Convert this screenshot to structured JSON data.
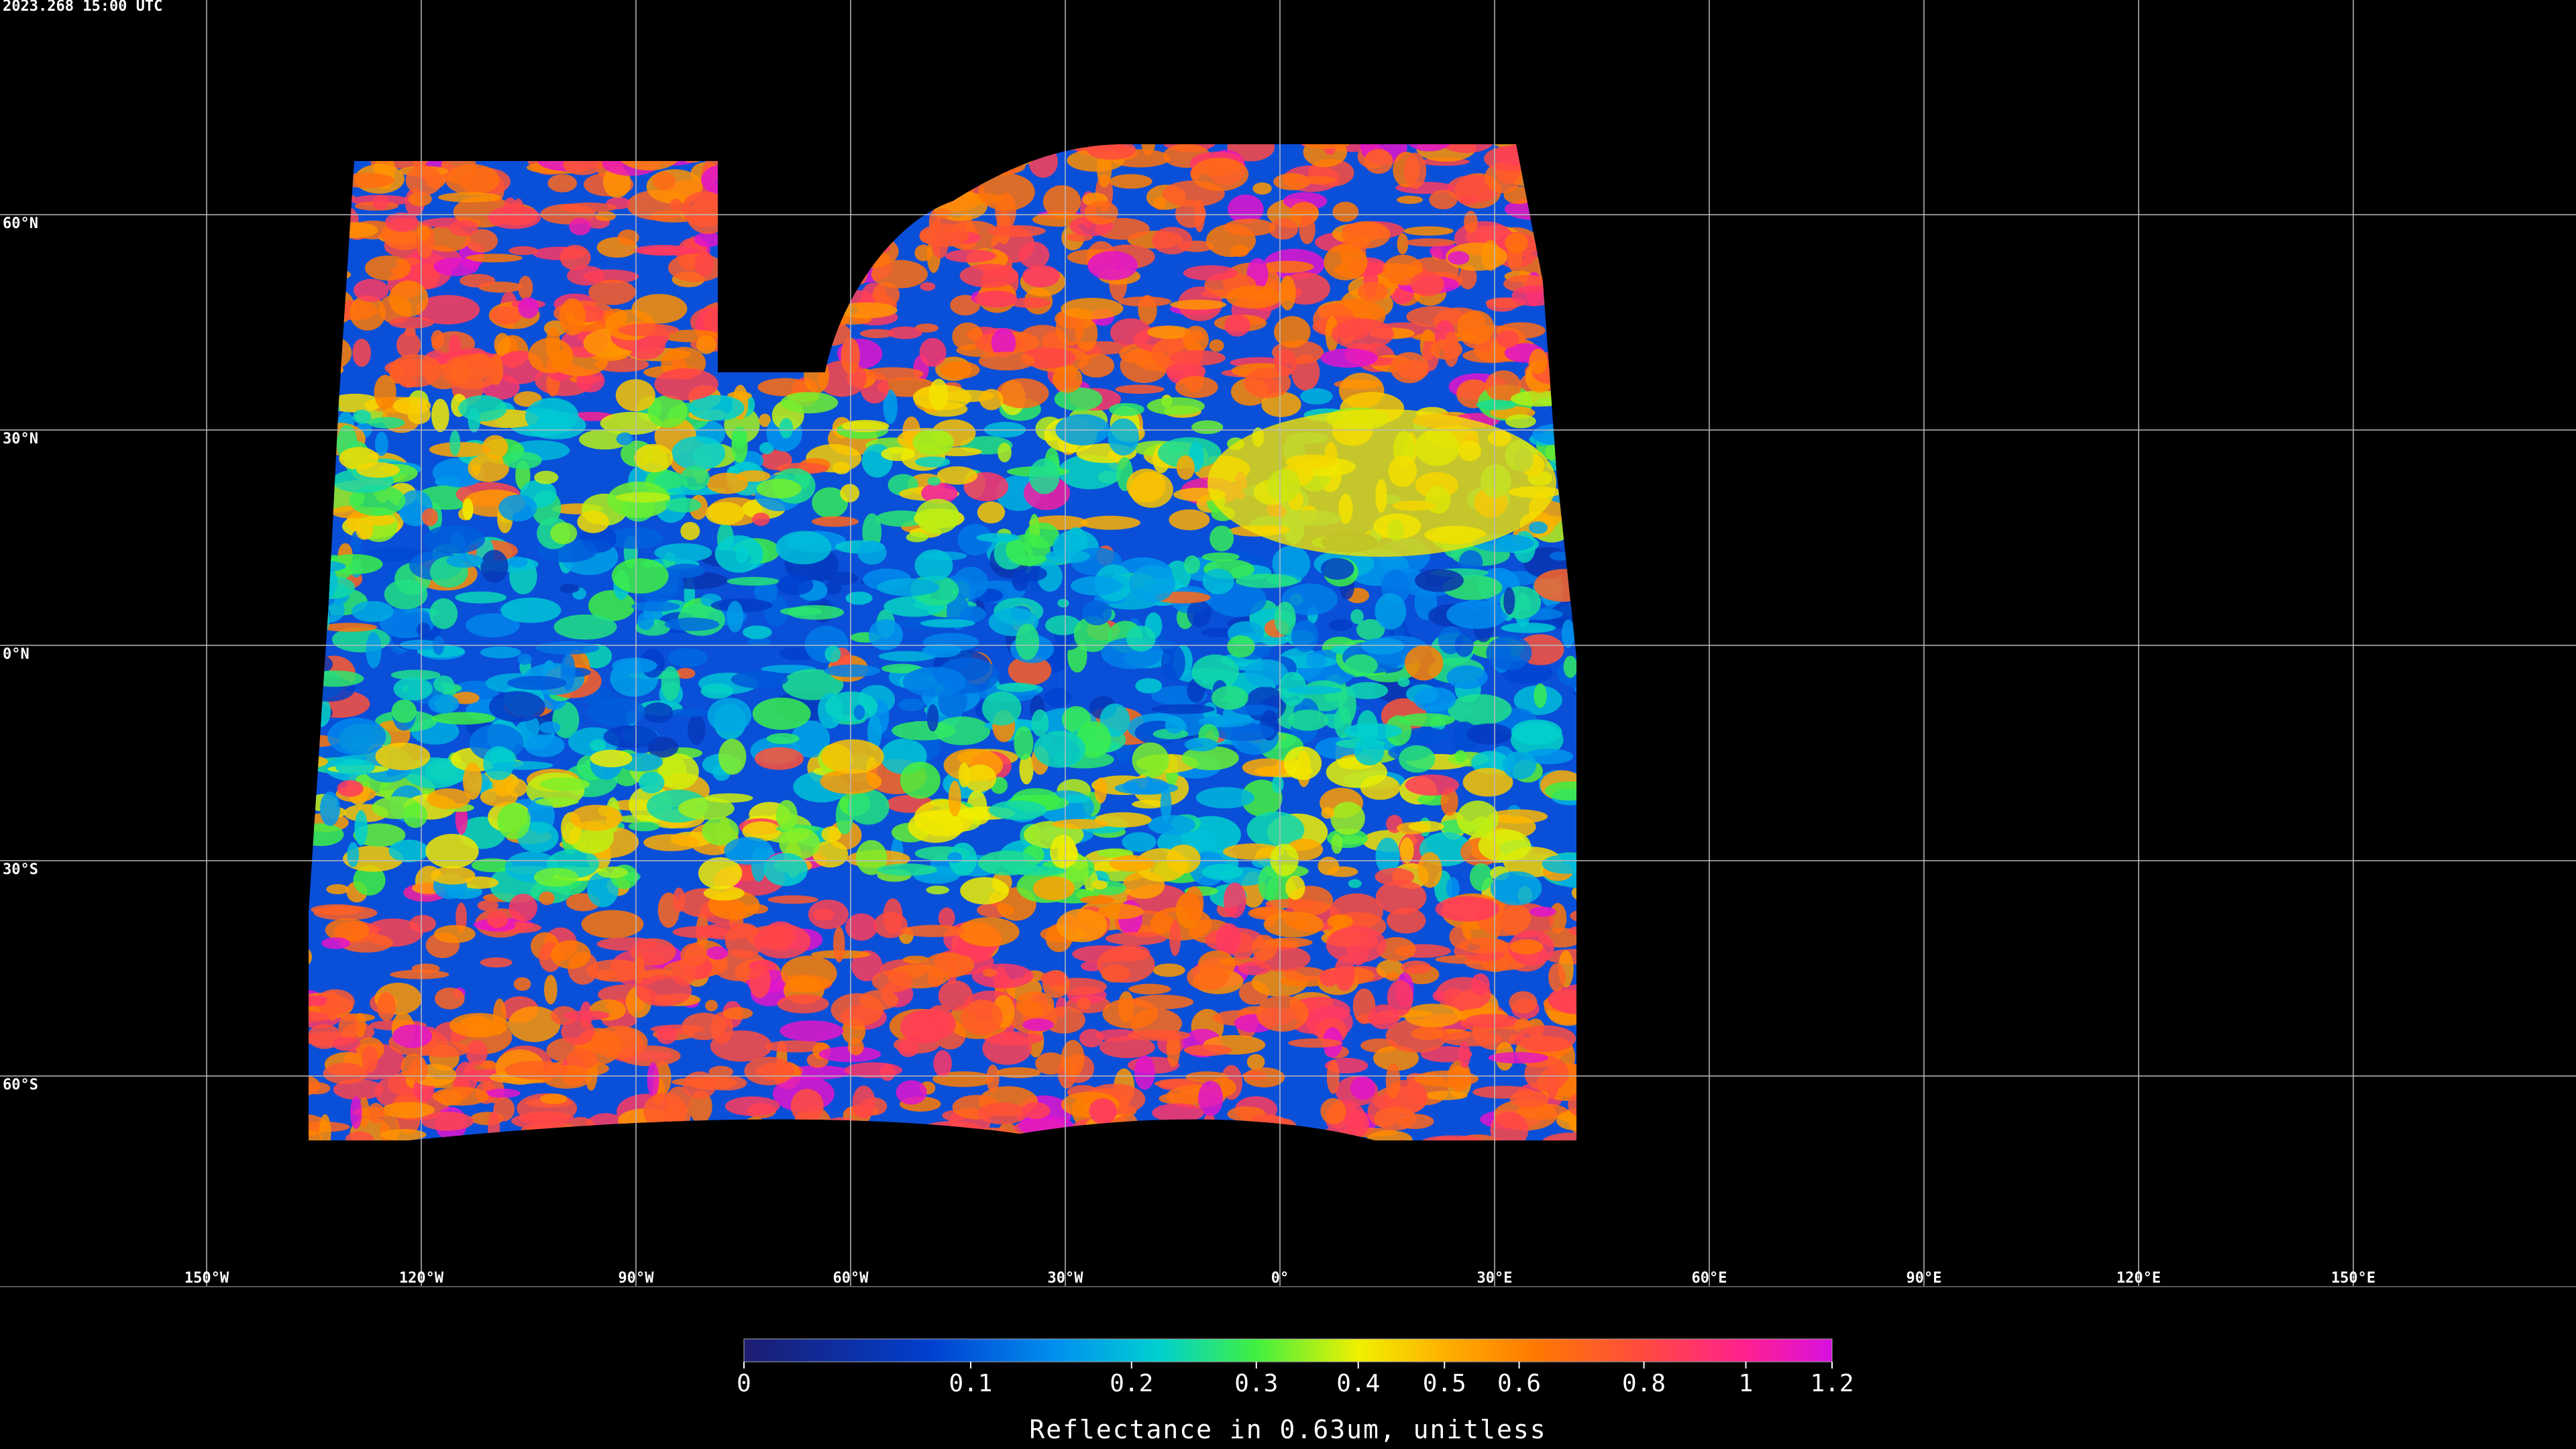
{
  "title": "2023.268 15:00 UTC",
  "map": {
    "lats": [
      60,
      30,
      0,
      -30,
      -60
    ],
    "lat_labels": [
      "60°N",
      "30°N",
      "0°N",
      "30°S",
      "60°S"
    ],
    "lons": [
      -150,
      -120,
      -90,
      -60,
      -30,
      0,
      30,
      60,
      90,
      120,
      150
    ],
    "lon_labels": [
      "150°W",
      "120°W",
      "90°W",
      "60°W",
      "30°W",
      "0°",
      "30°E",
      "60°E",
      "90°E",
      "120°E",
      "150°E"
    ]
  },
  "colorbar": {
    "label": "Reflectance in 0.63um, unitless",
    "lim": [
      0,
      1.2
    ],
    "ticks": [
      0,
      0.1,
      0.2,
      0.3,
      0.4,
      0.5,
      0.6,
      0.8,
      1,
      1.2
    ]
  }
}
